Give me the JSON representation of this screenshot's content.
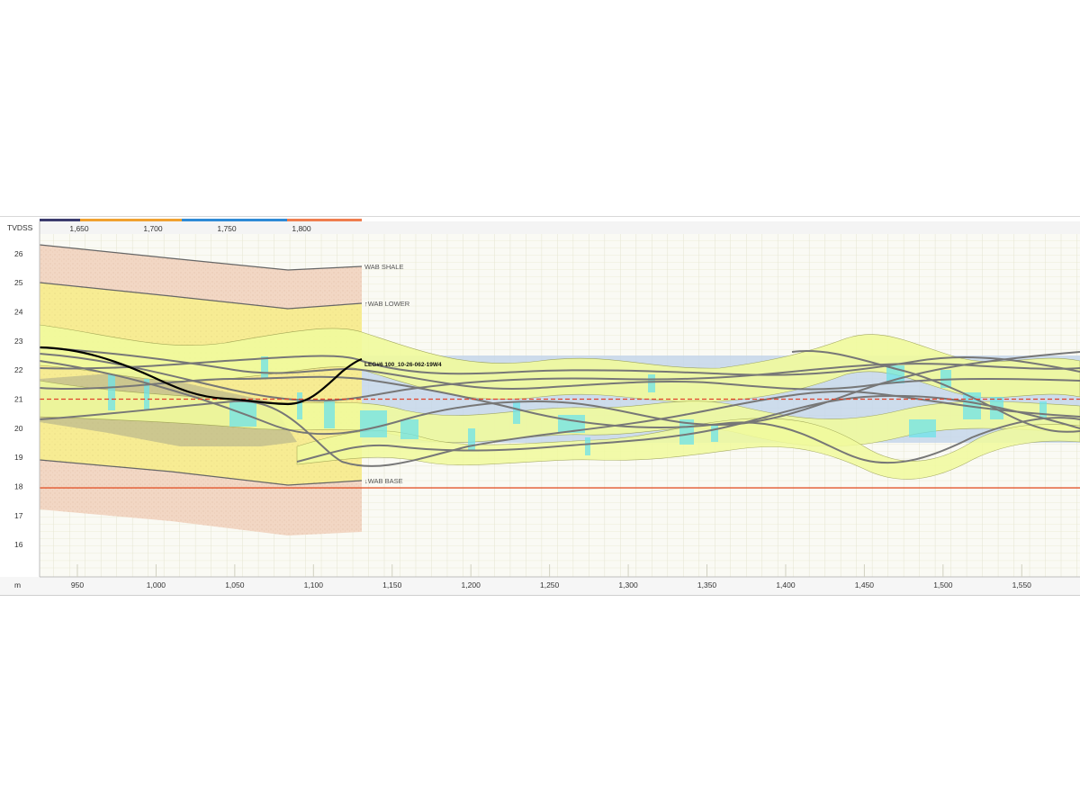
{
  "colors": {
    "shale_fill": "#f2d7c4",
    "lower_fill": "#f7ec93",
    "target_zone": "#c4d6ea",
    "corridor": "#f1fb9d",
    "cyan": "#6ee3ea",
    "grey_line": "#777777",
    "well_line": "#000000",
    "red_dashed": "#e0432b",
    "orange_line": "#e2562c",
    "grid": "#ebebdc",
    "top_bar_seg1": "#3b3b6e",
    "top_bar_seg2": "#f0a130",
    "top_bar_seg3": "#2e8ad6",
    "top_bar_seg4": "#ef7d4e"
  },
  "axes": {
    "y_title": "TVDSS",
    "x_title": "m",
    "y_ticks": [
      "26",
      "25",
      "24",
      "23",
      "22",
      "21",
      "20",
      "19",
      "18",
      "17",
      "16"
    ],
    "y_range": [
      15.2,
      26.8
    ],
    "x_ticks": [
      "950",
      "1,000",
      "1,050",
      "1,100",
      "1,150",
      "1,200",
      "1,250",
      "1,300",
      "1,350",
      "1,400",
      "1,450",
      "1,500",
      "1,550"
    ],
    "x_range": [
      926,
      1587
    ],
    "top_ticks": [
      "1,650",
      "1,700",
      "1,750",
      "1,800"
    ]
  },
  "horizons": {
    "shale": "WAB SHALE",
    "lower": "↑WAB LOWER",
    "base": "↓WAB BASE"
  },
  "well": {
    "label": "LEG#6 100_10-26-062-19W4"
  },
  "reference_lines": {
    "red_dashed_depth": 21.0,
    "orange_line_depth": 17.95
  },
  "target_zone": {
    "top": 22.5,
    "bottom": 19.5
  }
}
